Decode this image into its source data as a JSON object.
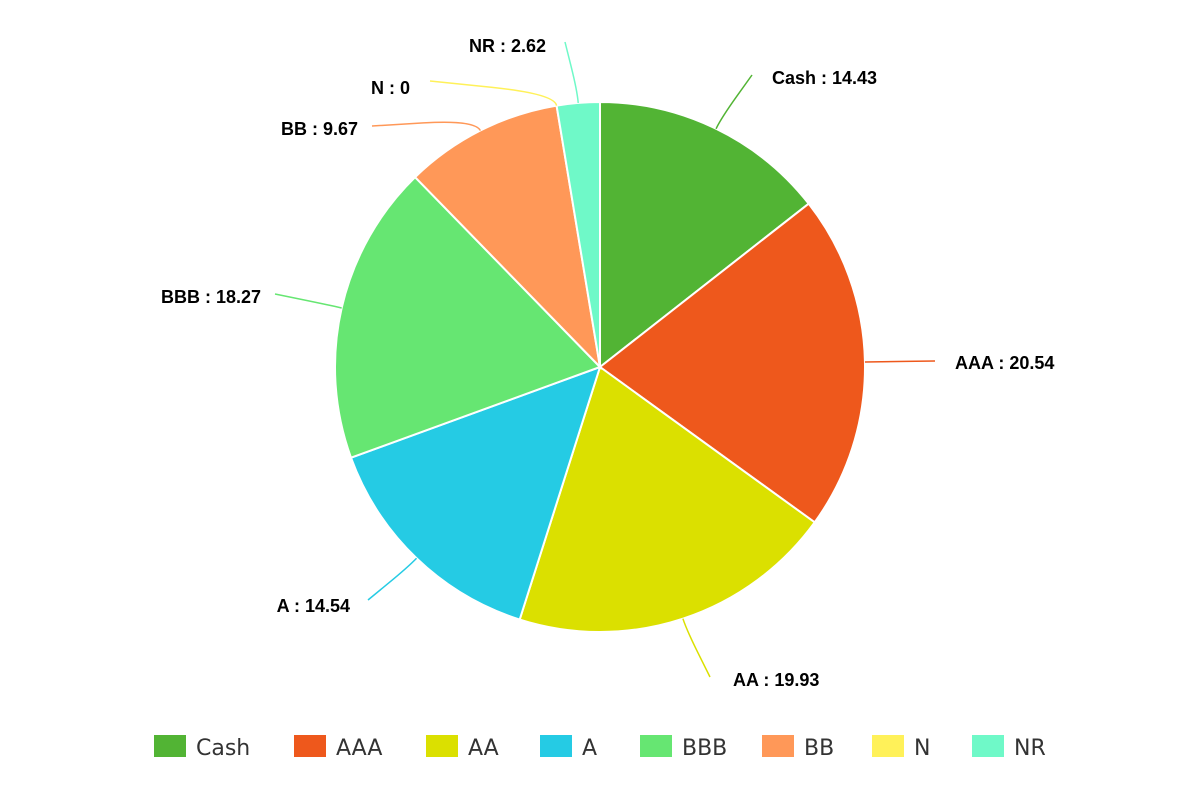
{
  "chart_data": {
    "type": "pie",
    "title": "",
    "categories": [
      "Cash",
      "AAA",
      "AA",
      "A",
      "BBB",
      "BB",
      "N",
      "NR"
    ],
    "values": [
      14.43,
      20.54,
      19.93,
      14.54,
      18.27,
      9.67,
      0,
      2.62
    ],
    "labels": [
      "Cash : 14.43",
      "AAA : 20.54",
      "AA : 19.93",
      "A : 14.54",
      "BBB : 18.27",
      "BB : 9.67",
      "N : 0",
      "NR : 2.62"
    ],
    "colors": [
      "#52b434",
      "#ee581c",
      "#dbe000",
      "#25cbe4",
      "#66e672",
      "#ff9858",
      "#fff159",
      "#6ff9c8"
    ],
    "legend": {
      "position": "bottom",
      "entries": [
        "Cash",
        "AAA",
        "AA",
        "A",
        "BBB",
        "BB",
        "N",
        "NR"
      ]
    }
  }
}
